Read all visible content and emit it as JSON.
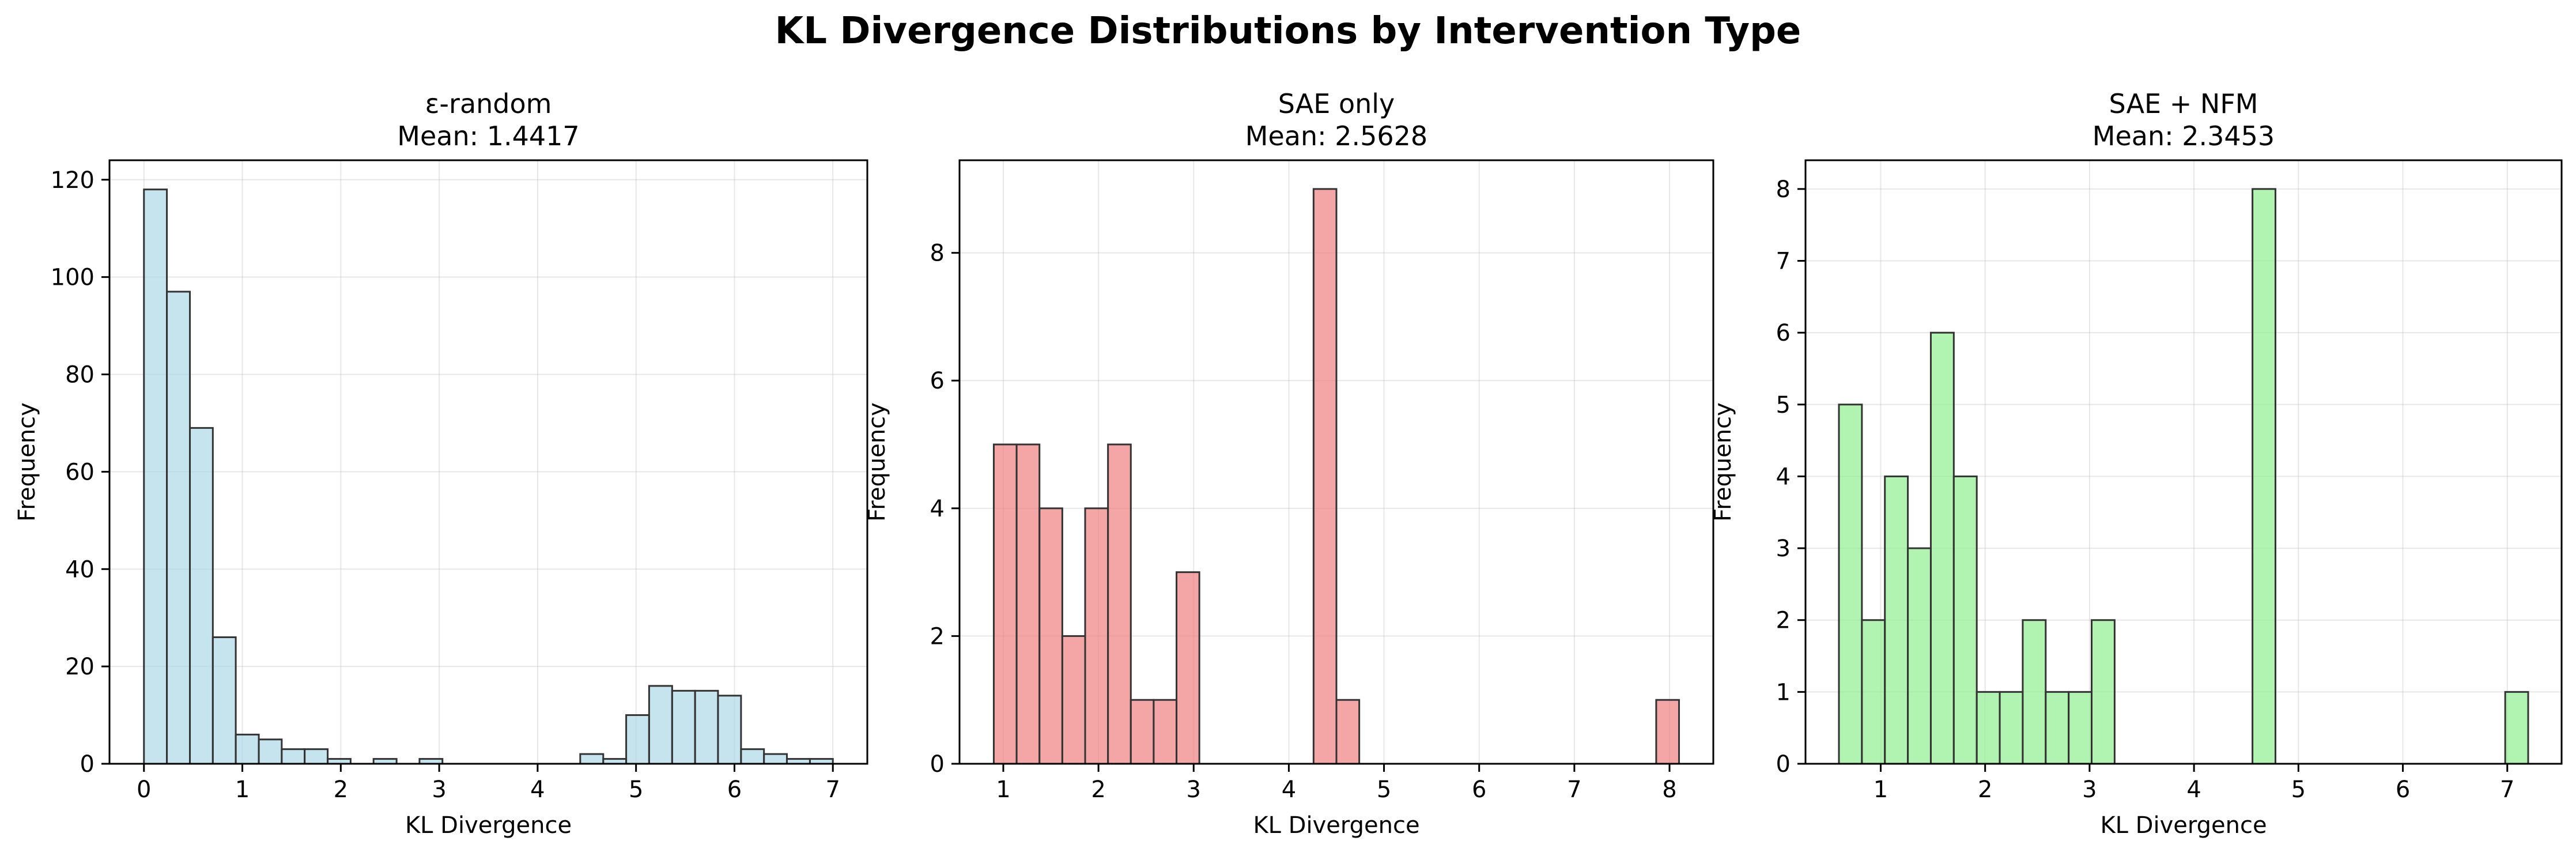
{
  "suptitle": "KL Divergence Distributions by Intervention Type",
  "chart_data": [
    {
      "type": "bar",
      "title": "ε-random",
      "subtitle": "Mean: 1.4417",
      "xlabel": "KL Divergence",
      "ylabel": "Frequency",
      "color": "#add8e6",
      "edge_color": "#333333",
      "grid": true,
      "xlim": [
        -0.35,
        7.35
      ],
      "ylim": [
        0,
        124
      ],
      "xticks": [
        0,
        1,
        2,
        3,
        4,
        5,
        6,
        7
      ],
      "yticks": [
        0,
        20,
        40,
        60,
        80,
        100,
        120
      ],
      "bin_edges": [
        0.0,
        0.233,
        0.467,
        0.7,
        0.933,
        1.167,
        1.4,
        1.633,
        1.867,
        2.1,
        2.333,
        2.567,
        2.8,
        3.033,
        3.267,
        3.5,
        3.733,
        3.967,
        4.2,
        4.433,
        4.667,
        4.9,
        5.133,
        5.367,
        5.6,
        5.833,
        6.067,
        6.3,
        6.533,
        6.767,
        7.0
      ],
      "values": [
        118,
        97,
        69,
        26,
        6,
        5,
        3,
        3,
        1,
        0,
        1,
        0,
        1,
        0,
        0,
        0,
        0,
        0,
        0,
        2,
        1,
        10,
        16,
        15,
        15,
        14,
        3,
        2,
        1,
        1
      ]
    },
    {
      "type": "bar",
      "title": "SAE only",
      "subtitle": "Mean: 2.5628",
      "xlabel": "KL Divergence",
      "ylabel": "Frequency",
      "color": "#f08080",
      "edge_color": "#333333",
      "grid": true,
      "xlim": [
        0.54,
        8.46
      ],
      "ylim": [
        0,
        9.45
      ],
      "xticks": [
        1,
        2,
        3,
        4,
        5,
        6,
        7,
        8
      ],
      "yticks": [
        0,
        2,
        4,
        6,
        8
      ],
      "bin_edges": [
        0.9,
        1.14,
        1.38,
        1.62,
        1.86,
        2.1,
        2.34,
        2.58,
        2.82,
        3.06,
        3.3,
        3.54,
        3.78,
        4.02,
        4.26,
        4.5,
        4.74,
        4.98,
        5.22,
        5.46,
        5.7,
        5.94,
        6.18,
        6.42,
        6.66,
        6.9,
        7.14,
        7.38,
        7.62,
        7.86,
        8.1
      ],
      "values": [
        5,
        5,
        4,
        2,
        4,
        5,
        1,
        1,
        3,
        0,
        0,
        0,
        0,
        0,
        9,
        1,
        0,
        0,
        0,
        0,
        0,
        0,
        0,
        0,
        0,
        0,
        0,
        0,
        0,
        1
      ]
    },
    {
      "type": "bar",
      "title": "SAE + NFM",
      "subtitle": "Mean: 2.3453",
      "xlabel": "KL Divergence",
      "ylabel": "Frequency",
      "color": "#90ee90",
      "edge_color": "#333333",
      "grid": true,
      "xlim": [
        0.28,
        7.52
      ],
      "ylim": [
        0,
        8.4
      ],
      "xticks": [
        1,
        2,
        3,
        4,
        5,
        6,
        7
      ],
      "yticks": [
        0,
        1,
        2,
        3,
        4,
        5,
        6,
        7,
        8
      ],
      "bin_edges": [
        0.6,
        0.82,
        1.04,
        1.26,
        1.48,
        1.7,
        1.92,
        2.14,
        2.36,
        2.58,
        2.8,
        3.02,
        3.24,
        3.46,
        3.68,
        3.9,
        4.12,
        4.34,
        4.56,
        4.78,
        5.0,
        5.22,
        5.44,
        5.66,
        5.88,
        6.1,
        6.32,
        6.54,
        6.76,
        6.98,
        7.2
      ],
      "values": [
        5,
        2,
        4,
        3,
        6,
        4,
        1,
        1,
        2,
        1,
        1,
        2,
        0,
        0,
        0,
        0,
        0,
        0,
        8,
        0,
        0,
        0,
        0,
        0,
        0,
        0,
        0,
        0,
        0,
        1
      ]
    }
  ]
}
